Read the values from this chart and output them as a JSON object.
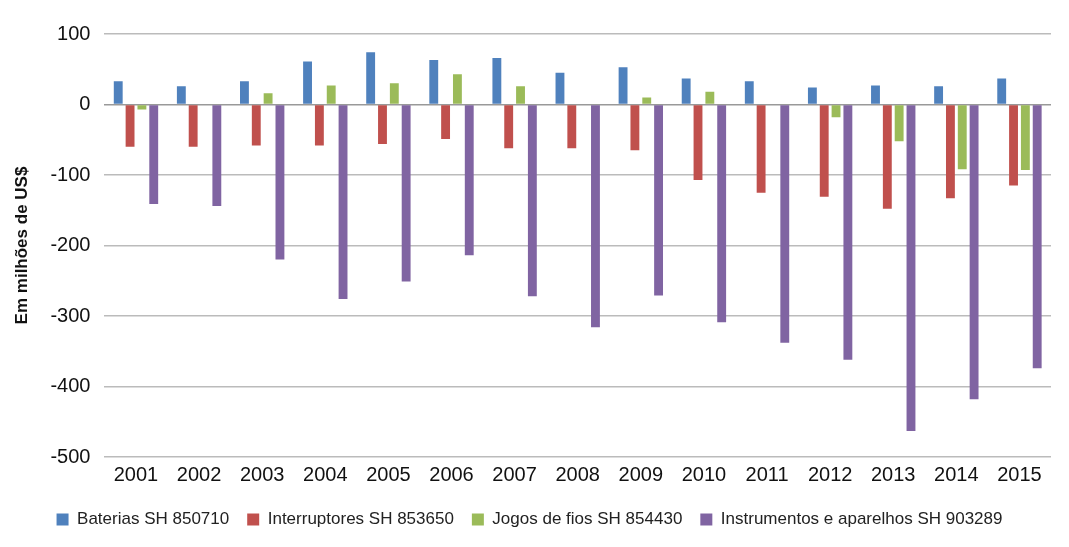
{
  "chart_data": {
    "type": "bar",
    "ylabel": "Em milhões de US$",
    "categories": [
      "2001",
      "2002",
      "2003",
      "2004",
      "2005",
      "2006",
      "2007",
      "2008",
      "2009",
      "2010",
      "2011",
      "2012",
      "2013",
      "2014",
      "2015"
    ],
    "series": [
      {
        "name": "Baterias SH 850710",
        "color": "#4f81bd",
        "values": [
          33,
          26,
          33,
          61,
          74,
          63,
          66,
          45,
          53,
          37,
          33,
          24,
          27,
          26,
          37
        ]
      },
      {
        "name": "Interruptores SH 853650",
        "color": "#c0504d",
        "values": [
          -60,
          -60,
          -58,
          -58,
          -56,
          -49,
          -62,
          -62,
          -65,
          -107,
          -125,
          -131,
          -148,
          -133,
          -115
        ]
      },
      {
        "name": "Jogos de fios SH 854430",
        "color": "#9bbb59",
        "values": [
          -7,
          null,
          16,
          27,
          30,
          43,
          26,
          null,
          10,
          18,
          null,
          -18,
          -52,
          -92,
          -93
        ]
      },
      {
        "name": "Instrumentos e aparelhos SH 903289",
        "color": "#8064a2",
        "values": [
          -141,
          -144,
          -220,
          -276,
          -251,
          -214,
          -272,
          -316,
          -271,
          -309,
          -338,
          -362,
          -463,
          -418,
          -374
        ]
      }
    ],
    "ylim": [
      -500,
      100
    ],
    "yticks": [
      -500,
      -400,
      -300,
      -200,
      -100,
      0,
      100
    ],
    "grid": "y",
    "legend": "bottom"
  }
}
